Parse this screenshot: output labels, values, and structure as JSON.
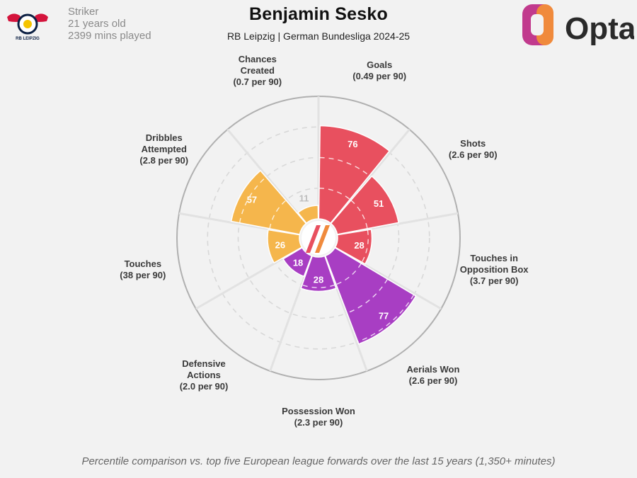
{
  "header": {
    "position": "Striker",
    "age": "21 years old",
    "minutes": "2399 mins played",
    "player_name": "Benjamin Sesko",
    "subtitle": "RB Leipzig | German Bundesliga 2024-25",
    "club_logo_text": "RB LEIPZIG",
    "brand": "Opta"
  },
  "colors": {
    "background": "#f2f2f2",
    "attacking": "#e8505f",
    "possession": "#a83ec3",
    "creation": "#f5b64c",
    "grid": "#d8d8d8",
    "outer_ring": "#b0b0b0"
  },
  "chart_data": {
    "type": "polar-area",
    "range": [
      0,
      100
    ],
    "segments": [
      {
        "name": "Goals",
        "per90": "(0.49 per 90)",
        "percentile": 76,
        "group": "attacking"
      },
      {
        "name": "Shots",
        "per90": "(2.6 per 90)",
        "percentile": 51,
        "group": "attacking"
      },
      {
        "name": "Touches in Opposition Box",
        "per90": "(3.7 per 90)",
        "percentile": 28,
        "group": "attacking"
      },
      {
        "name": "Aerials Won",
        "per90": "(2.6 per 90)",
        "percentile": 77,
        "group": "possession"
      },
      {
        "name": "Possession Won",
        "per90": "(2.3 per 90)",
        "percentile": 28,
        "group": "possession"
      },
      {
        "name": "Defensive Actions",
        "per90": "(2.0 per 90)",
        "percentile": 18,
        "group": "possession"
      },
      {
        "name": "Touches",
        "per90": "(38 per 90)",
        "percentile": 26,
        "group": "creation"
      },
      {
        "name": "Dribbles Attempted",
        "per90": "(2.8 per 90)",
        "percentile": 57,
        "group": "creation"
      },
      {
        "name": "Chances Created",
        "per90": "(0.7 per 90)",
        "percentile": 11,
        "group": "creation"
      }
    ]
  },
  "footnote": "Percentile comparison vs. top five European league forwards over the last 15 years (1,350+ minutes)"
}
